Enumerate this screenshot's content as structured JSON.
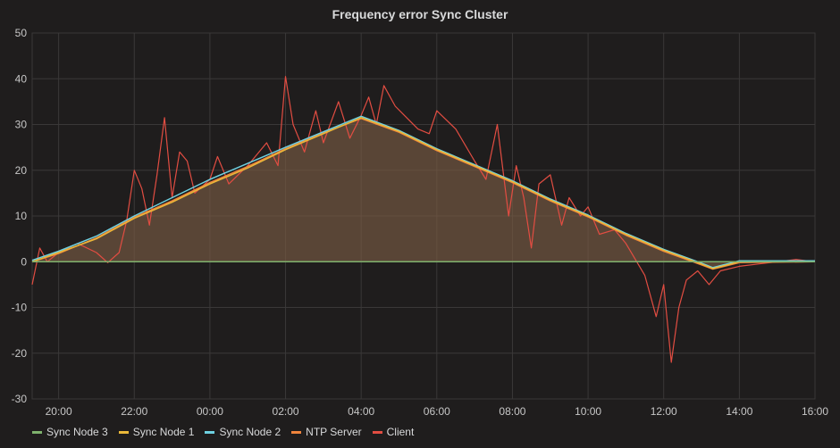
{
  "chart_data": {
    "type": "line",
    "title": "Frequency error Sync Cluster",
    "xlabel": "",
    "ylabel": "",
    "ylim": [
      -30,
      50
    ],
    "yticks": [
      50,
      40,
      30,
      20,
      10,
      0,
      -10,
      -20,
      -30
    ],
    "xrange_hours": [
      19.3,
      40.0
    ],
    "xticks": [
      {
        "label": "20:00",
        "h": 20
      },
      {
        "label": "22:00",
        "h": 22
      },
      {
        "label": "00:00",
        "h": 24
      },
      {
        "label": "02:00",
        "h": 26
      },
      {
        "label": "04:00",
        "h": 28
      },
      {
        "label": "06:00",
        "h": 30
      },
      {
        "label": "08:00",
        "h": 32
      },
      {
        "label": "10:00",
        "h": 34
      },
      {
        "label": "12:00",
        "h": 36
      },
      {
        "label": "14:00",
        "h": 38
      },
      {
        "label": "16:00",
        "h": 40
      }
    ],
    "grid": true,
    "legend_position": "bottom-left",
    "series": [
      {
        "name": "Sync Node 3",
        "color": "#7eb26d",
        "points": [
          [
            19.3,
            0
          ],
          [
            40.0,
            0
          ]
        ]
      },
      {
        "name": "Sync Node 1",
        "color": "#eab839",
        "points": [
          [
            19.3,
            0
          ],
          [
            20,
            2
          ],
          [
            21,
            5
          ],
          [
            22,
            9.5
          ],
          [
            23,
            13
          ],
          [
            24,
            17
          ],
          [
            25,
            20.5
          ],
          [
            26,
            24.5
          ],
          [
            27,
            28
          ],
          [
            28,
            31.5
          ],
          [
            29,
            28.5
          ],
          [
            30,
            24.5
          ],
          [
            31,
            21
          ],
          [
            32,
            17.5
          ],
          [
            33,
            13.5
          ],
          [
            34,
            10
          ],
          [
            35,
            6
          ],
          [
            36,
            2.5
          ],
          [
            37,
            -0.5
          ],
          [
            37.3,
            -1.5
          ],
          [
            38,
            0
          ],
          [
            40,
            0
          ]
        ]
      },
      {
        "name": "Sync Node 2",
        "color": "#6ed0e0",
        "points": [
          [
            19.3,
            0.3
          ],
          [
            20,
            2.3
          ],
          [
            21,
            5.6
          ],
          [
            22,
            10
          ],
          [
            23,
            14
          ],
          [
            24,
            18
          ],
          [
            25,
            21.5
          ],
          [
            26,
            25
          ],
          [
            27,
            28.4
          ],
          [
            28,
            31.8
          ],
          [
            29,
            28.7
          ],
          [
            30,
            24.7
          ],
          [
            31,
            21.2
          ],
          [
            32,
            17.7
          ],
          [
            33,
            13.7
          ],
          [
            34,
            10.2
          ],
          [
            35,
            6.2
          ],
          [
            36,
            2.7
          ],
          [
            37,
            -0.3
          ],
          [
            37.3,
            -1.3
          ],
          [
            38,
            0.2
          ],
          [
            40,
            0.2
          ]
        ]
      },
      {
        "name": "NTP Server",
        "color": "#ef843c",
        "points": [
          [
            19.3,
            0
          ],
          [
            20,
            1.8
          ],
          [
            21,
            5.2
          ],
          [
            22,
            9.7
          ],
          [
            23,
            13.3
          ],
          [
            24,
            17.3
          ],
          [
            25,
            20.8
          ],
          [
            26,
            24.7
          ],
          [
            27,
            28.2
          ],
          [
            28,
            31.3
          ],
          [
            29,
            28.3
          ],
          [
            30,
            24.3
          ],
          [
            31,
            20.8
          ],
          [
            32,
            17.3
          ],
          [
            33,
            13.3
          ],
          [
            34,
            9.8
          ],
          [
            35,
            5.8
          ],
          [
            36,
            2.3
          ],
          [
            37,
            -0.7
          ],
          [
            37.3,
            -1.6
          ],
          [
            38,
            -0.2
          ],
          [
            40,
            0
          ]
        ]
      },
      {
        "name": "Client",
        "color": "#e24d42",
        "fill": true,
        "points": [
          [
            19.3,
            -5
          ],
          [
            19.5,
            3
          ],
          [
            19.7,
            0
          ],
          [
            20,
            2
          ],
          [
            20.5,
            4
          ],
          [
            21,
            2
          ],
          [
            21.3,
            -0.2
          ],
          [
            21.6,
            2
          ],
          [
            21.8,
            9
          ],
          [
            22,
            20
          ],
          [
            22.2,
            16
          ],
          [
            22.4,
            8
          ],
          [
            22.6,
            19
          ],
          [
            22.8,
            31.5
          ],
          [
            23,
            14
          ],
          [
            23.2,
            24
          ],
          [
            23.4,
            22
          ],
          [
            23.6,
            15
          ],
          [
            24,
            18
          ],
          [
            24.2,
            23
          ],
          [
            24.5,
            17
          ],
          [
            25,
            21
          ],
          [
            25.5,
            26
          ],
          [
            25.8,
            21
          ],
          [
            26,
            40.5
          ],
          [
            26.2,
            30
          ],
          [
            26.5,
            24
          ],
          [
            26.8,
            33
          ],
          [
            27,
            26
          ],
          [
            27.4,
            35
          ],
          [
            27.7,
            27
          ],
          [
            28,
            32
          ],
          [
            28.2,
            36
          ],
          [
            28.4,
            30
          ],
          [
            28.6,
            38.5
          ],
          [
            28.9,
            34
          ],
          [
            29.2,
            31.5
          ],
          [
            29.5,
            29
          ],
          [
            29.8,
            28
          ],
          [
            30,
            33
          ],
          [
            30.5,
            29
          ],
          [
            31,
            22
          ],
          [
            31.3,
            18
          ],
          [
            31.6,
            30
          ],
          [
            31.9,
            10
          ],
          [
            32.1,
            21
          ],
          [
            32.3,
            14
          ],
          [
            32.5,
            3
          ],
          [
            32.7,
            17
          ],
          [
            33,
            19
          ],
          [
            33.3,
            8
          ],
          [
            33.5,
            14
          ],
          [
            33.8,
            10
          ],
          [
            34,
            12
          ],
          [
            34.3,
            6
          ],
          [
            34.7,
            7
          ],
          [
            35,
            4
          ],
          [
            35.5,
            -3
          ],
          [
            35.8,
            -12
          ],
          [
            36,
            -5
          ],
          [
            36.2,
            -22
          ],
          [
            36.4,
            -10
          ],
          [
            36.6,
            -4
          ],
          [
            36.9,
            -2
          ],
          [
            37.2,
            -5
          ],
          [
            37.5,
            -2
          ],
          [
            38,
            -1
          ],
          [
            38.5,
            -0.5
          ],
          [
            39,
            0
          ],
          [
            39.5,
            0.5
          ],
          [
            40,
            0
          ]
        ]
      }
    ]
  }
}
